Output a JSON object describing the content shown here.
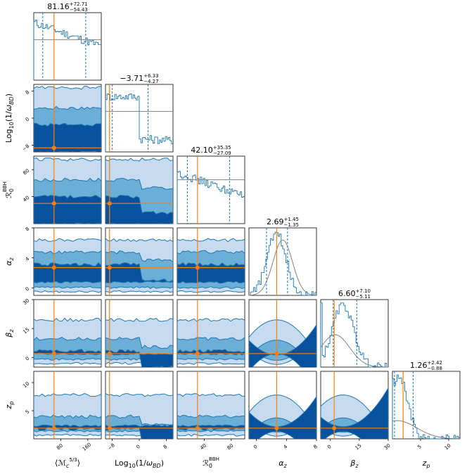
{
  "chart_data": {
    "type": "corner",
    "params": [
      {
        "key": "mc",
        "label": "⟨M_c^{5/3}⟩",
        "range": [
          0,
          200
        ],
        "ticks": [
          "80",
          "160"
        ],
        "tick_vals": [
          80,
          160
        ],
        "median": "81.16",
        "plus": "+72.71",
        "minus": "−54.43",
        "truth": 60,
        "q_lo": 26.7,
        "q_hi": 153.9
      },
      {
        "key": "omega",
        "label": "Log10(1/ω_BD)",
        "range": [
          -10,
          10
        ],
        "ticks": [
          "−8",
          "0",
          "8"
        ],
        "tick_vals": [
          -8,
          0,
          8
        ],
        "median": "−3.71",
        "plus": "+6.33",
        "minus": "−4.27",
        "truth": -8.8,
        "q_lo": -7.98,
        "q_hi": 2.62
      },
      {
        "key": "r0",
        "label": "R_0^BBH",
        "range": [
          0,
          100
        ],
        "ticks": [
          "40",
          "80"
        ],
        "tick_vals": [
          40,
          80
        ],
        "median": "42.10",
        "plus": "+35.35",
        "minus": "−27.09",
        "truth": 30,
        "q_lo": 15.0,
        "q_hi": 77.5
      },
      {
        "key": "alpha",
        "label": "α_z",
        "range": [
          -1,
          8
        ],
        "ticks": [
          "0",
          "4",
          "8"
        ],
        "tick_vals": [
          0,
          4,
          8
        ],
        "median": "2.69",
        "plus": "+1.45",
        "minus": "−1.35",
        "truth": 2.7,
        "q_lo": 1.34,
        "q_hi": 4.14
      },
      {
        "key": "beta",
        "label": "β_z",
        "range": [
          -5,
          30
        ],
        "ticks": [
          "0",
          "15",
          "30"
        ],
        "tick_vals": [
          0,
          15,
          30
        ],
        "median": "6.60",
        "plus": "+7.10",
        "minus": "−5.11",
        "truth": 2.0,
        "q_lo": 1.49,
        "q_hi": 13.7
      },
      {
        "key": "zp",
        "label": "z_p",
        "range": [
          0,
          12
        ],
        "ticks": [
          "5",
          "10"
        ],
        "tick_vals": [
          5,
          10
        ],
        "median": "1.26",
        "plus": "+2.42",
        "minus": "−0.88",
        "truth": 1.9,
        "q_lo": 0.38,
        "q_hi": 3.68
      }
    ],
    "y_ticks": {
      "omega": [
        {
          "t": "8",
          "v": 8
        },
        {
          "t": "0",
          "v": 0
        },
        {
          "t": "−8",
          "v": -8
        }
      ],
      "r0": [
        {
          "t": "80",
          "v": 80
        },
        {
          "t": "40",
          "v": 40
        }
      ],
      "alpha": [
        {
          "t": "8",
          "v": 8
        },
        {
          "t": "4",
          "v": 4
        },
        {
          "t": "0",
          "v": 0
        }
      ],
      "beta": [
        {
          "t": "30",
          "v": 30
        },
        {
          "t": "15",
          "v": 15
        },
        {
          "t": "0",
          "v": 0
        }
      ],
      "zp": [
        {
          "t": "10",
          "v": 10
        },
        {
          "t": "5",
          "v": 5
        }
      ]
    },
    "priors": {
      "mc": {
        "kind": "uniform",
        "level": 0.6
      },
      "omega": {
        "kind": "uniform",
        "level": 0.6
      },
      "r0": {
        "kind": "uniform",
        "level": 0.65
      },
      "alpha": {
        "kind": "gauss",
        "mu": 3.5,
        "sigma": 1.3
      },
      "beta": {
        "kind": "gauss",
        "mu": 2.5,
        "sigma": 7.5
      },
      "zp": {
        "kind": "gauss",
        "mu": 0.8,
        "sigma": 3.5
      }
    },
    "colors": {
      "posterior": "#1f77b4",
      "fill_outer": "#c6dbef",
      "fill_mid": "#6baed6",
      "fill_inner": "#08519c",
      "truth": "#ff7f0e",
      "prior": "#808080"
    }
  }
}
